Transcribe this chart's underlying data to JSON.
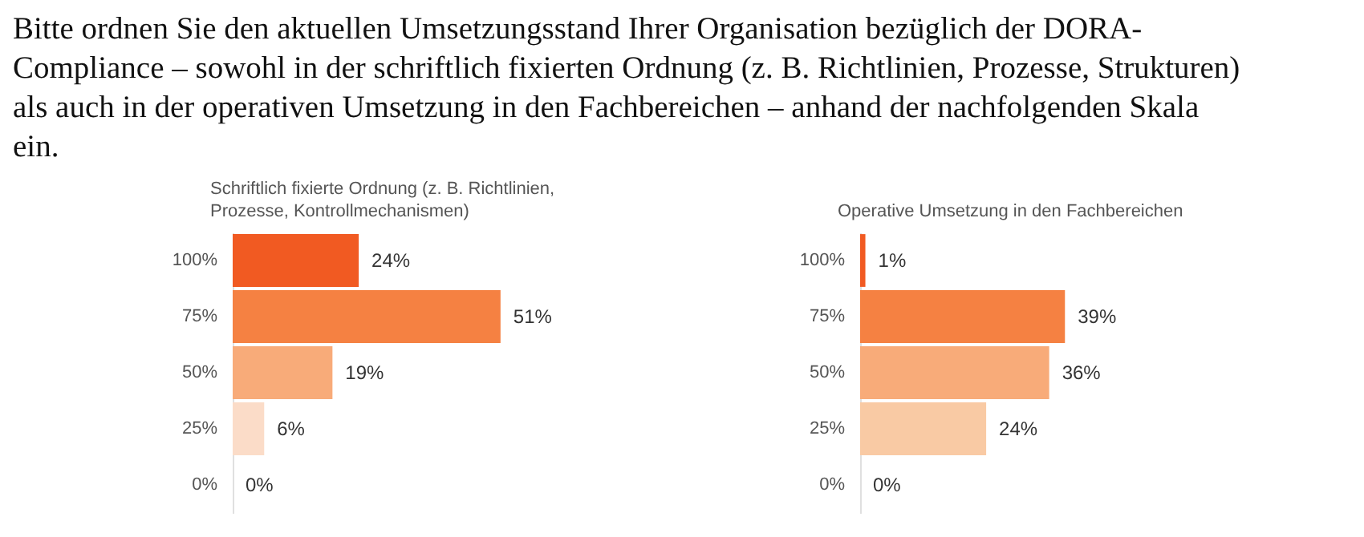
{
  "chart_data": [
    {
      "type": "other",
      "title": "Bitte ordnen Sie den aktuellen Umsetzungsstand Ihrer Organisation bezüglich der DORA-\nCompliance – sowohl in der schriftlich fixierten Ordnung (z. B. Richtlinien, Prozesse, Strukturen)\nals auch in der operativen Umsetzung in den Fachbereichen – anhand der nachfolgenden Skala\nein."
    },
    {
      "type": "bar",
      "orientation": "horizontal",
      "title": "Schriftlich fixierte Ordnung (z.  B. Richtlinien,\nProzesse, Kontrollmechanismen)",
      "categories": [
        "100%",
        "75%",
        "50%",
        "25%",
        "0%"
      ],
      "values": [
        24,
        51,
        19,
        6,
        0
      ],
      "value_labels": [
        "24%",
        "51%",
        "19%",
        "6%",
        "0%"
      ],
      "colors": [
        "#f15a22",
        "#f58142",
        "#f8ab79",
        "#fbdcc8",
        "#fde9dc"
      ],
      "tick_labels": "y",
      "grid": false,
      "legend": false
    },
    {
      "type": "bar",
      "orientation": "horizontal",
      "title": "Operative Umsetzung in den Fachbereichen",
      "categories": [
        "100%",
        "75%",
        "50%",
        "25%",
        "0%"
      ],
      "values": [
        1,
        39,
        36,
        24,
        0
      ],
      "value_labels": [
        "1%",
        "39%",
        "36%",
        "24%",
        "0%"
      ],
      "colors": [
        "#f15a22",
        "#f58142",
        "#f8ab79",
        "#f9caa4",
        "#fde9dc"
      ],
      "tick_labels": "y",
      "grid": false,
      "legend": false
    }
  ]
}
